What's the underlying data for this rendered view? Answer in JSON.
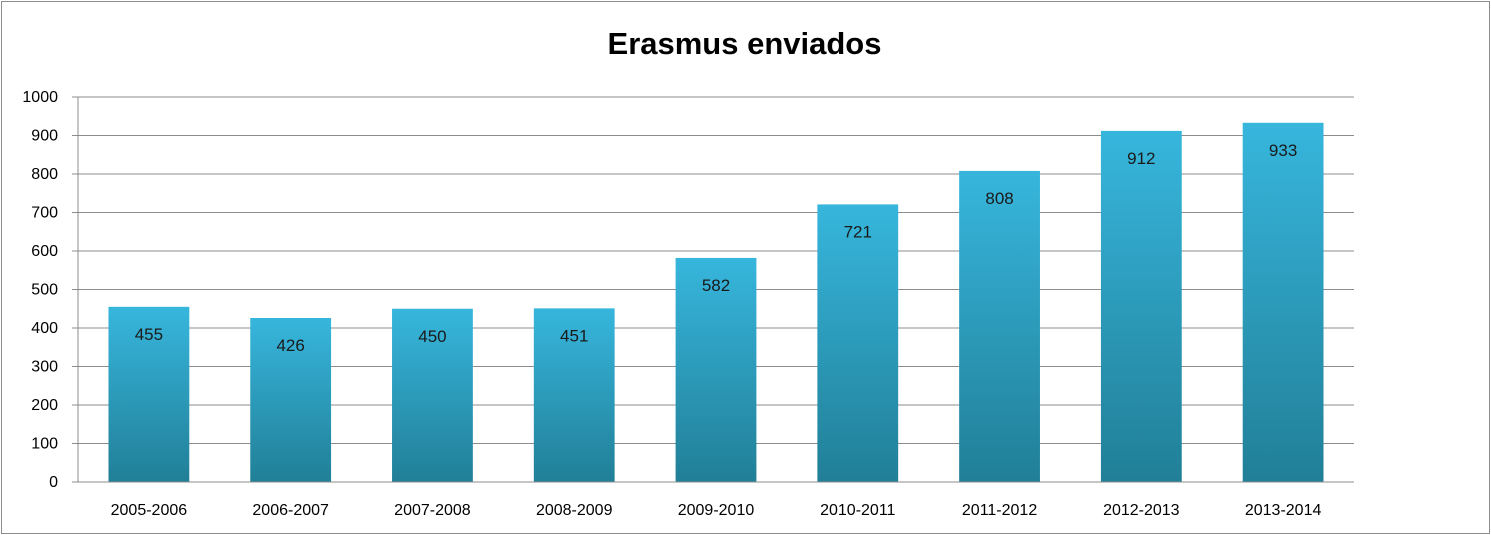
{
  "chart_data": {
    "type": "bar",
    "title": "Erasmus enviados",
    "xlabel": "",
    "ylabel": "",
    "categories": [
      "2005-2006",
      "2006-2007",
      "2007-2008",
      "2008-2009",
      "2009-2010",
      "2010-2011",
      "2011-2012",
      "2012-2013",
      "2013-2014"
    ],
    "values": [
      455,
      426,
      450,
      451,
      582,
      721,
      808,
      912,
      933
    ],
    "data_labels": [
      "455",
      "426",
      "450",
      "451",
      "582",
      "721",
      "808",
      "912",
      "933"
    ],
    "ylim": [
      0,
      1000
    ],
    "y_ticks": [
      "0",
      "100",
      "200",
      "300",
      "400",
      "500",
      "600",
      "700",
      "800",
      "900",
      "1000"
    ],
    "grid": true,
    "legend": "none",
    "colors": {
      "bar_top": "#37b6dd",
      "bar_bottom": "#217f97",
      "grid": "#8c8c8c",
      "axis": "#8c8c8c"
    }
  }
}
